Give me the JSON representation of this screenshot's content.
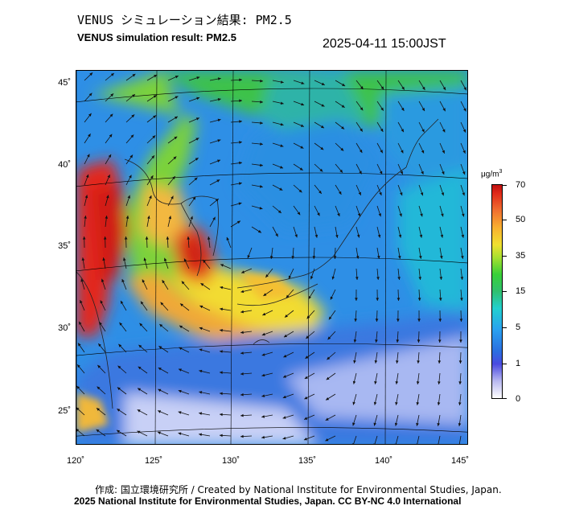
{
  "header": {
    "title_jp": "VENUS シミュレーション結果: PM2.5",
    "title_en": "VENUS simulation result: PM2.5",
    "timestamp": "2025-04-11 15:00JST"
  },
  "map": {
    "lat_labels": [
      "45˚",
      "40˚",
      "35˚",
      "30˚",
      "25˚"
    ],
    "lon_labels": [
      "120˚",
      "125˚",
      "130˚",
      "135˚",
      "140˚",
      "145˚"
    ],
    "lat_values": [
      45,
      40,
      35,
      30,
      25
    ],
    "lon_values": [
      120,
      125,
      130,
      135,
      140,
      145
    ]
  },
  "colorbar": {
    "unit_base": "μg/m",
    "unit_exp": "3",
    "ticks": [
      "70",
      "50",
      "35",
      "15",
      "5",
      "1",
      "0"
    ],
    "colors": {
      "low": "#ffffff",
      "blue": "#2b6fe0",
      "cyan": "#22d0d0",
      "green": "#38d038",
      "yellow": "#f0e030",
      "orange": "#f8b030",
      "red": "#e02a1a"
    }
  },
  "footer": {
    "credit": "作成: 国立環境研究所 / Created by National Institute for Environmental Studies, Japan.",
    "copyright": "2025 National Institute for Environmental Studies, Japan. CC BY-NC 4.0 International"
  }
}
